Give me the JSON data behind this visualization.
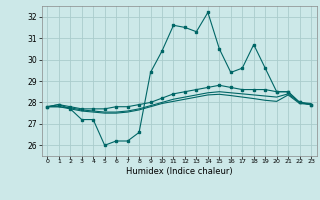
{
  "title": "",
  "xlabel": "Humidex (Indice chaleur)",
  "background_color": "#cce8e8",
  "grid_color": "#aacccc",
  "line_color": "#006666",
  "x_values": [
    0,
    1,
    2,
    3,
    4,
    5,
    6,
    7,
    8,
    9,
    10,
    11,
    12,
    13,
    14,
    15,
    16,
    17,
    18,
    19,
    20,
    21,
    22,
    23
  ],
  "ylim": [
    25.5,
    32.5
  ],
  "xlim": [
    -0.5,
    23.5
  ],
  "yticks": [
    26,
    27,
    28,
    29,
    30,
    31,
    32
  ],
  "xtick_labels": [
    "0",
    "1",
    "2",
    "3",
    "4",
    "5",
    "6",
    "7",
    "8",
    "9",
    "10",
    "11",
    "12",
    "13",
    "14",
    "15",
    "16",
    "17",
    "18",
    "19",
    "20",
    "21",
    "22",
    "23"
  ],
  "line1": [
    27.8,
    27.9,
    27.7,
    27.2,
    27.2,
    26.0,
    26.2,
    26.2,
    26.6,
    29.4,
    30.4,
    31.6,
    31.5,
    31.3,
    32.2,
    30.5,
    29.4,
    29.6,
    30.7,
    29.6,
    28.5,
    28.5,
    28.0,
    27.9
  ],
  "line2": [
    27.8,
    27.9,
    27.8,
    27.7,
    27.7,
    27.7,
    27.8,
    27.8,
    27.9,
    28.0,
    28.2,
    28.4,
    28.5,
    28.6,
    28.7,
    28.8,
    28.7,
    28.6,
    28.6,
    28.6,
    28.5,
    28.5,
    28.0,
    27.9
  ],
  "line3": [
    27.8,
    27.8,
    27.75,
    27.65,
    27.6,
    27.55,
    27.55,
    27.6,
    27.7,
    27.85,
    28.0,
    28.15,
    28.25,
    28.35,
    28.45,
    28.5,
    28.45,
    28.4,
    28.35,
    28.3,
    28.25,
    28.4,
    28.0,
    27.95
  ],
  "line4": [
    27.8,
    27.8,
    27.7,
    27.6,
    27.55,
    27.5,
    27.5,
    27.55,
    27.65,
    27.8,
    27.95,
    28.05,
    28.15,
    28.25,
    28.35,
    28.38,
    28.32,
    28.25,
    28.18,
    28.1,
    28.05,
    28.35,
    27.95,
    27.9
  ]
}
